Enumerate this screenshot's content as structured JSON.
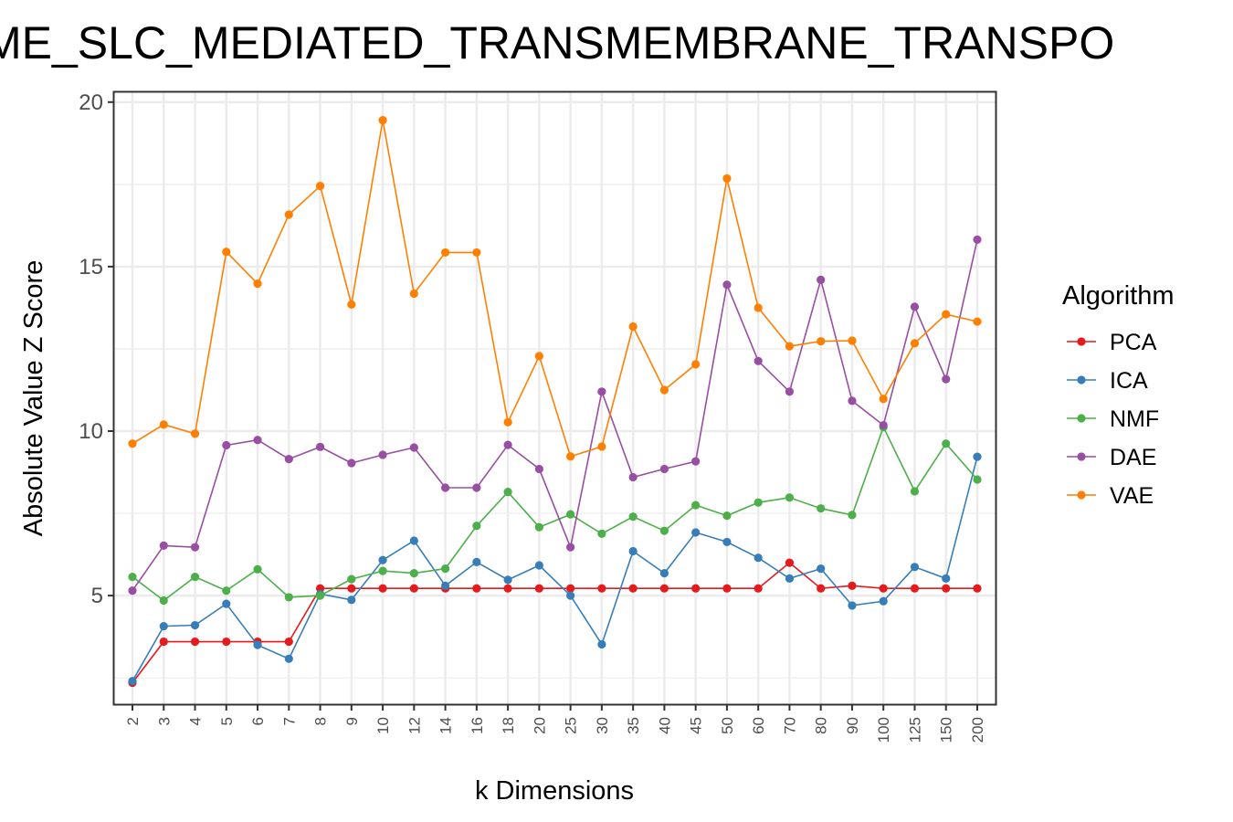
{
  "chart_data": {
    "type": "line",
    "title": "ME_SLC_MEDIATED_TRANSMEMBRANE_TRANSPO",
    "xlabel": "k Dimensions",
    "ylabel": "Absolute Value Z Score",
    "categories": [
      "2",
      "3",
      "4",
      "5",
      "6",
      "7",
      "8",
      "9",
      "10",
      "12",
      "14",
      "16",
      "18",
      "20",
      "25",
      "30",
      "35",
      "40",
      "45",
      "50",
      "60",
      "70",
      "80",
      "90",
      "100",
      "125",
      "150",
      "200"
    ],
    "ylim": [
      1.7,
      20.3
    ],
    "yticks": [
      "5",
      "10",
      "15",
      "20"
    ],
    "ytick_values": [
      5,
      10,
      15,
      20
    ],
    "grid": true,
    "legend": {
      "title": "Algorithm",
      "position": "right"
    },
    "series": [
      {
        "name": "PCA",
        "color": "#e41a1c",
        "values": [
          2.35,
          3.6,
          3.6,
          3.6,
          3.6,
          3.6,
          5.22,
          5.22,
          5.22,
          5.22,
          5.22,
          5.22,
          5.22,
          5.22,
          5.22,
          5.22,
          5.22,
          5.22,
          5.22,
          5.22,
          5.22,
          6.0,
          5.22,
          5.3,
          5.22,
          5.22,
          5.22,
          5.22
        ]
      },
      {
        "name": "ICA",
        "color": "#377eb8",
        "values": [
          2.4,
          4.07,
          4.1,
          4.75,
          3.5,
          3.08,
          5.05,
          4.87,
          6.08,
          6.67,
          5.3,
          6.02,
          5.48,
          5.92,
          5.0,
          3.52,
          6.35,
          5.68,
          6.92,
          6.63,
          6.15,
          5.52,
          5.82,
          4.7,
          4.83,
          5.87,
          5.52,
          9.22
        ]
      },
      {
        "name": "NMF",
        "color": "#4daf4a",
        "values": [
          5.57,
          4.85,
          5.57,
          5.15,
          5.8,
          4.95,
          5.0,
          5.5,
          5.75,
          5.68,
          5.82,
          7.12,
          8.15,
          7.08,
          7.47,
          6.88,
          7.4,
          6.97,
          7.75,
          7.43,
          7.83,
          7.98,
          7.65,
          7.45,
          10.12,
          8.17,
          9.62,
          8.53
        ]
      },
      {
        "name": "DAE",
        "color": "#984ea3",
        "values": [
          5.15,
          6.52,
          6.47,
          9.57,
          9.73,
          9.15,
          9.52,
          9.03,
          9.28,
          9.5,
          8.28,
          8.28,
          9.58,
          8.85,
          6.47,
          11.2,
          8.6,
          8.85,
          9.08,
          14.45,
          12.13,
          11.2,
          14.6,
          10.92,
          10.18,
          13.78,
          11.58,
          15.82
        ]
      },
      {
        "name": "VAE",
        "color": "#ff7f00",
        "values": [
          9.62,
          10.2,
          9.92,
          15.45,
          14.48,
          16.58,
          17.45,
          13.85,
          19.45,
          14.18,
          15.43,
          15.43,
          10.27,
          12.28,
          9.23,
          9.53,
          13.18,
          11.25,
          12.03,
          17.68,
          13.75,
          12.58,
          12.73,
          12.75,
          10.98,
          12.67,
          13.55,
          13.33
        ]
      }
    ]
  }
}
